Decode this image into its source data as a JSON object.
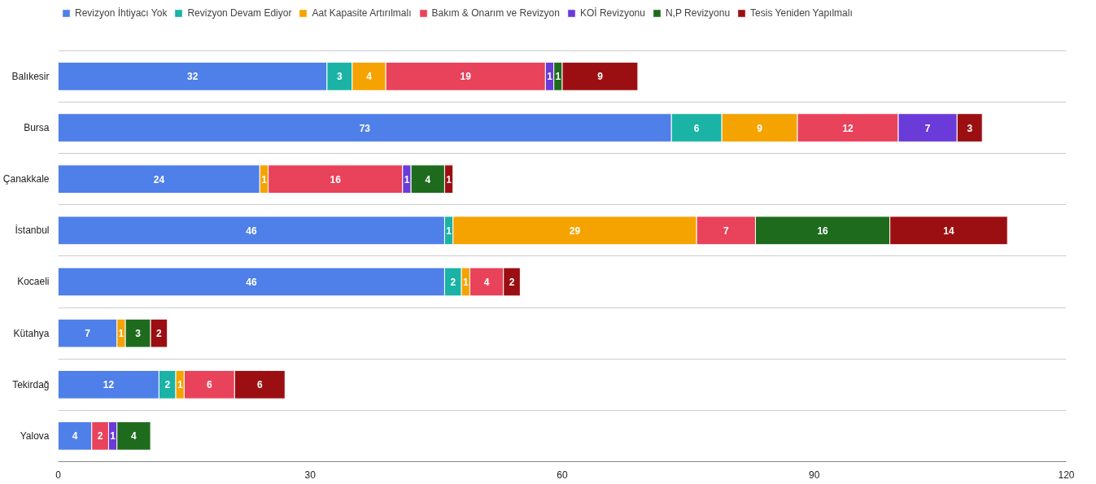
{
  "chart_data": {
    "type": "bar",
    "orientation": "horizontal",
    "stacked": true,
    "data_labels": true,
    "legend": "top left",
    "grid": "y",
    "categories": [
      "Balıkesir",
      "Bursa",
      "Çanakkale",
      "İstanbul",
      "Kocaeli",
      "Kütahya",
      "Tekirdağ",
      "Yalova"
    ],
    "xlim": [
      0,
      120
    ],
    "xticks": [
      0,
      30,
      60,
      90,
      120
    ],
    "series": [
      {
        "name": "Revizyon İhtiyacı Yok",
        "color": "#4f7fe8",
        "values": [
          32,
          73,
          24,
          46,
          46,
          7,
          12,
          4
        ]
      },
      {
        "name": "Revizyon Devam Ediyor",
        "color": "#1ab3a6",
        "values": [
          3,
          6,
          null,
          1,
          2,
          null,
          2,
          null
        ]
      },
      {
        "name": "Aat Kapasite Artırılmalı",
        "color": "#f5a300",
        "values": [
          4,
          9,
          1,
          29,
          1,
          1,
          1,
          null
        ]
      },
      {
        "name": "Bakım & Onarım ve Revizyon",
        "color": "#e8435a",
        "values": [
          19,
          12,
          16,
          7,
          4,
          null,
          6,
          2
        ]
      },
      {
        "name": "KOİ Revizyonu",
        "color": "#6a3bd8",
        "values": [
          1,
          7,
          1,
          null,
          null,
          null,
          null,
          1
        ]
      },
      {
        "name": "N,P Revizyonu",
        "color": "#1e6b1e",
        "values": [
          1,
          null,
          4,
          16,
          null,
          3,
          null,
          4
        ]
      },
      {
        "name": "Tesis Yeniden Yapılmalı",
        "color": "#9b0f12",
        "values": [
          9,
          3,
          1,
          14,
          2,
          2,
          6,
          null
        ]
      }
    ]
  }
}
